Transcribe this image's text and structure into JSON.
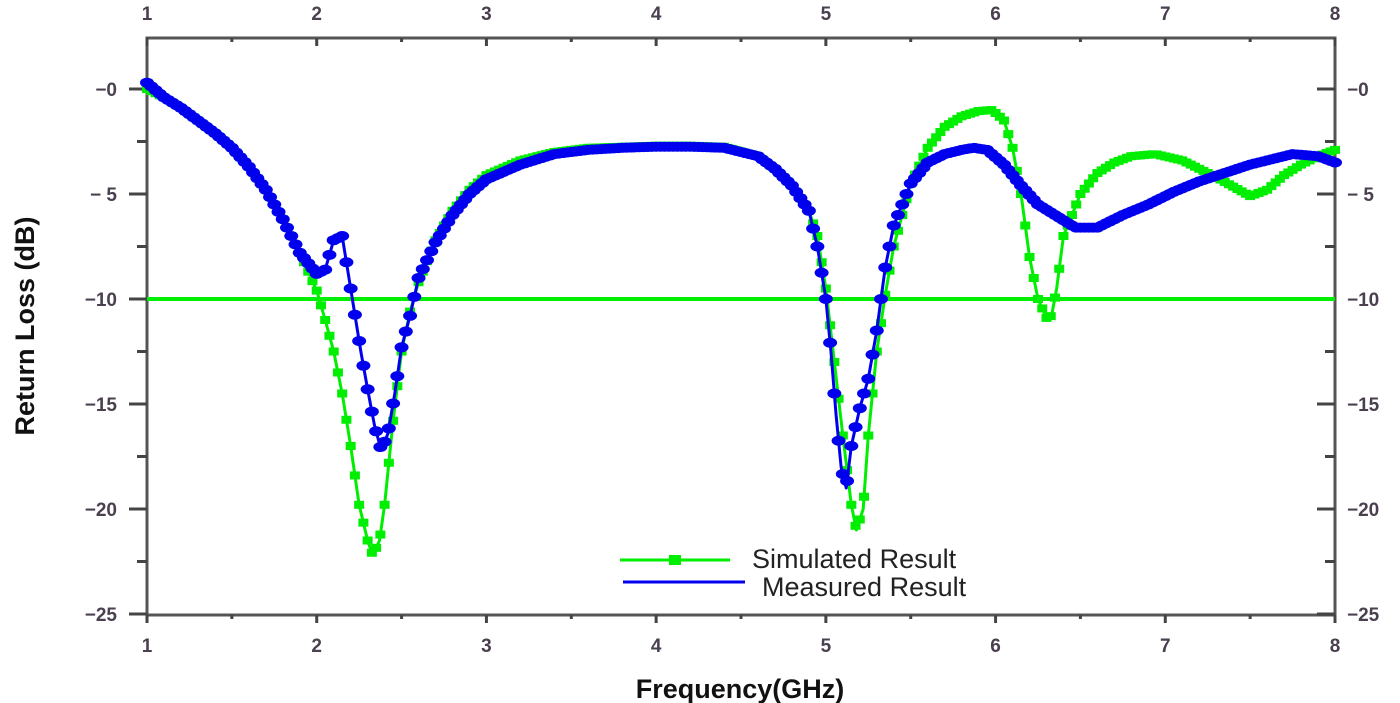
{
  "chart_data": {
    "type": "line",
    "title": "",
    "xlabel": "Frequency(GHz)",
    "ylabel": "Return Loss (dB)",
    "xlim": [
      1,
      8
    ],
    "ylim": [
      -25,
      2.5
    ],
    "x_ticks": [
      1,
      2,
      3,
      4,
      5,
      6,
      7,
      8
    ],
    "x_tick_labels": [
      "1",
      "2",
      "3",
      "4",
      "5",
      "6",
      "7",
      "8"
    ],
    "y_ticks": [
      0,
      -5,
      -10,
      -15,
      -20,
      -25
    ],
    "y_tick_labels": [
      "−0",
      "− 5",
      "−10",
      "−15",
      "−20",
      "−25"
    ],
    "grid": false,
    "legend_position": "lower center",
    "reference_line": {
      "y": -10,
      "color": "#00ee00"
    },
    "series": [
      {
        "name": "Simulated Result",
        "color": "#00ee00",
        "marker": "square",
        "x": [
          1.0,
          1.1,
          1.2,
          1.3,
          1.4,
          1.5,
          1.6,
          1.7,
          1.8,
          1.9,
          2.0,
          2.05,
          2.1,
          2.15,
          2.2,
          2.25,
          2.3,
          2.33,
          2.37,
          2.4,
          2.45,
          2.5,
          2.55,
          2.6,
          2.7,
          2.8,
          2.9,
          3.0,
          3.2,
          3.4,
          3.6,
          3.8,
          4.0,
          4.2,
          4.4,
          4.6,
          4.7,
          4.8,
          4.9,
          4.95,
          5.0,
          5.05,
          5.1,
          5.15,
          5.18,
          5.22,
          5.25,
          5.3,
          5.35,
          5.4,
          5.5,
          5.6,
          5.7,
          5.8,
          5.9,
          5.98,
          6.05,
          6.1,
          6.15,
          6.2,
          6.25,
          6.3,
          6.33,
          6.36,
          6.4,
          6.5,
          6.6,
          6.7,
          6.8,
          6.94,
          7.1,
          7.3,
          7.5,
          7.6,
          7.7,
          7.8,
          7.9,
          8.0
        ],
        "y": [
          0.0,
          -0.4,
          -0.9,
          -1.5,
          -2.1,
          -2.8,
          -3.7,
          -4.8,
          -6.2,
          -7.8,
          -9.6,
          -11.0,
          -12.5,
          -14.5,
          -17.0,
          -19.8,
          -21.5,
          -22.2,
          -21.5,
          -19.8,
          -15.8,
          -12.5,
          -10.6,
          -9.2,
          -7.2,
          -5.8,
          -4.8,
          -4.1,
          -3.4,
          -3.0,
          -2.8,
          -2.75,
          -2.7,
          -2.7,
          -2.75,
          -3.2,
          -3.8,
          -4.6,
          -5.8,
          -7.0,
          -9.5,
          -13.0,
          -16.5,
          -19.8,
          -21.0,
          -20.0,
          -16.5,
          -12.5,
          -9.8,
          -7.5,
          -4.5,
          -2.8,
          -1.8,
          -1.3,
          -1.05,
          -1.0,
          -1.5,
          -2.8,
          -5.0,
          -8.0,
          -10.0,
          -10.9,
          -10.8,
          -9.5,
          -7.0,
          -5.0,
          -4.0,
          -3.5,
          -3.2,
          -3.1,
          -3.4,
          -4.2,
          -5.1,
          -4.8,
          -4.1,
          -3.6,
          -3.2,
          -2.9
        ]
      },
      {
        "name": "Measured Result",
        "color": "#0000ee",
        "marker": "diamond",
        "x": [
          1.0,
          1.1,
          1.2,
          1.3,
          1.4,
          1.5,
          1.6,
          1.7,
          1.8,
          1.9,
          2.0,
          2.05,
          2.1,
          2.15,
          2.18,
          2.22,
          2.26,
          2.3,
          2.34,
          2.38,
          2.42,
          2.46,
          2.5,
          2.55,
          2.6,
          2.7,
          2.8,
          2.9,
          3.0,
          3.2,
          3.4,
          3.6,
          3.8,
          4.0,
          4.2,
          4.4,
          4.6,
          4.7,
          4.8,
          4.9,
          4.95,
          5.0,
          5.03,
          5.06,
          5.09,
          5.12,
          5.15,
          5.2,
          5.25,
          5.3,
          5.35,
          5.4,
          5.5,
          5.6,
          5.7,
          5.8,
          5.87,
          5.95,
          6.05,
          6.15,
          6.25,
          6.35,
          6.47,
          6.6,
          6.75,
          6.9,
          7.05,
          7.2,
          7.35,
          7.5,
          7.65,
          7.75,
          7.9,
          8.0
        ],
        "y": [
          0.3,
          -0.4,
          -0.9,
          -1.5,
          -2.1,
          -2.8,
          -3.7,
          -4.8,
          -6.2,
          -7.8,
          -8.8,
          -8.6,
          -7.2,
          -7.0,
          -8.5,
          -10.5,
          -12.5,
          -14.3,
          -16.0,
          -17.2,
          -16.4,
          -14.5,
          -12.3,
          -10.8,
          -9.0,
          -7.3,
          -6.0,
          -5.0,
          -4.3,
          -3.6,
          -3.1,
          -2.9,
          -2.8,
          -2.75,
          -2.75,
          -2.8,
          -3.2,
          -3.8,
          -4.6,
          -5.8,
          -7.5,
          -10.0,
          -12.5,
          -15.5,
          -18.0,
          -19.0,
          -17.0,
          -15.2,
          -13.8,
          -11.5,
          -8.5,
          -6.5,
          -4.5,
          -3.5,
          -3.1,
          -2.9,
          -2.8,
          -2.9,
          -3.6,
          -4.6,
          -5.5,
          -6.0,
          -6.6,
          -6.6,
          -6.0,
          -5.5,
          -4.9,
          -4.4,
          -4.0,
          -3.6,
          -3.3,
          -3.1,
          -3.2,
          -3.5
        ]
      }
    ]
  },
  "labels": {
    "x_axis_title": "Frequency(GHz)",
    "y_axis_title": "Return Loss (dB)",
    "legend": [
      "Simulated Result",
      "Measured Result"
    ]
  }
}
